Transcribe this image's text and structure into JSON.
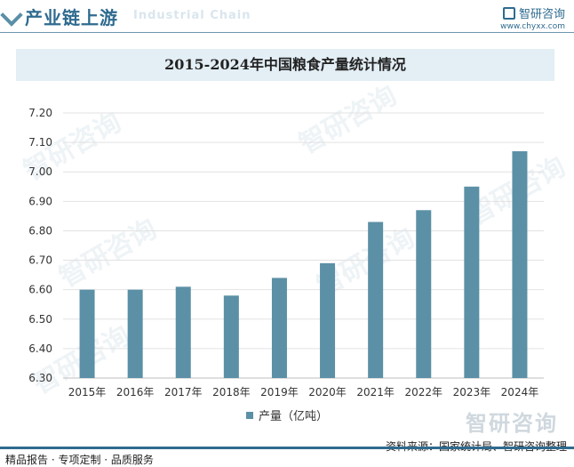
{
  "header": {
    "title": "产业链上游",
    "subtitle_faint": "Industrial Chain",
    "brand_name": "智研咨询",
    "brand_url": "www.chyxx.com"
  },
  "watermark_text": "智研咨询",
  "chart_data": {
    "type": "bar",
    "title": "2015-2024年中国粮食产量统计情况",
    "categories": [
      "2015年",
      "2016年",
      "2017年",
      "2018年",
      "2019年",
      "2020年",
      "2021年",
      "2022年",
      "2023年",
      "2024年"
    ],
    "series": [
      {
        "name": "产量（亿吨）",
        "values": [
          6.6,
          6.6,
          6.61,
          6.58,
          6.64,
          6.69,
          6.83,
          6.87,
          6.95,
          7.07
        ]
      }
    ],
    "ylim": [
      6.3,
      7.2
    ],
    "yticks": [
      "6.30",
      "6.40",
      "6.50",
      "6.60",
      "6.70",
      "6.80",
      "6.90",
      "7.00",
      "7.10",
      "7.20"
    ],
    "grid": true,
    "legend_position": "bottom",
    "bar_color": "#5b90a6"
  },
  "footer": {
    "left": "精品报告 · 专项定制 · 品质服务",
    "right": "资料来源：国家统计局、智研咨询整理"
  }
}
